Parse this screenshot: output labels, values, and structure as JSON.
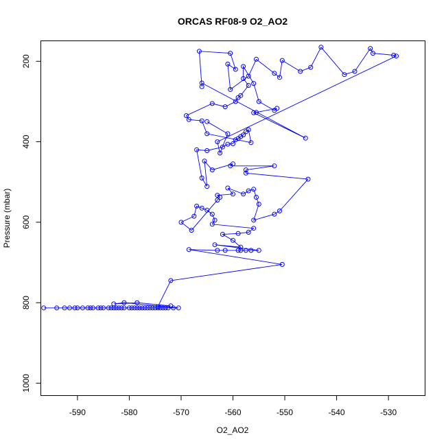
{
  "chart_data": {
    "type": "scatter",
    "title": "ORCAS RF08-9 O2_AO2",
    "xlabel": "O2_AO2",
    "ylabel": "Pressure (mbar)",
    "xlim": [
      -597,
      -523
    ],
    "ylim": [
      1030,
      150
    ],
    "y_reversed": true,
    "x_ticks": [
      -590,
      -580,
      -570,
      -560,
      -550,
      -540,
      -530
    ],
    "x_tick_labels": [
      "-590",
      "-580",
      "-570",
      "-560",
      "-550",
      "-540",
      "-530"
    ],
    "y_ticks": [
      200,
      400,
      600,
      800,
      1000
    ],
    "y_tick_labels": [
      "200",
      "400",
      "600",
      "800",
      "1000"
    ],
    "series_color": "#0000ff",
    "grid": false,
    "legend": "none",
    "points": [
      [
        -596.5,
        813
      ],
      [
        -594,
        813
      ],
      [
        -592.5,
        813
      ],
      [
        -591.5,
        813
      ],
      [
        -590.5,
        813
      ],
      [
        -590,
        813
      ],
      [
        -589,
        813
      ],
      [
        -588,
        813
      ],
      [
        -587.5,
        813
      ],
      [
        -587,
        813
      ],
      [
        -586,
        813
      ],
      [
        -585.5,
        813
      ],
      [
        -585,
        813
      ],
      [
        -584,
        813
      ],
      [
        -583.5,
        813
      ],
      [
        -583,
        813
      ],
      [
        -582.5,
        813
      ],
      [
        -582,
        813
      ],
      [
        -581.5,
        813
      ],
      [
        -581,
        813
      ],
      [
        -580,
        813
      ],
      [
        -579.5,
        813
      ],
      [
        -579,
        813
      ],
      [
        -578.5,
        813
      ],
      [
        -578,
        813
      ],
      [
        -577.5,
        813
      ],
      [
        -577,
        813
      ],
      [
        -576.5,
        813
      ],
      [
        -576,
        813
      ],
      [
        -575.5,
        813
      ],
      [
        -575,
        813
      ],
      [
        -574.5,
        813
      ],
      [
        -574,
        813
      ],
      [
        -573.5,
        813
      ],
      [
        -573,
        813
      ],
      [
        -572.5,
        813
      ],
      [
        -571.5,
        813
      ],
      [
        -570.5,
        813
      ],
      [
        -581,
        800
      ],
      [
        -583,
        803
      ],
      [
        -578.5,
        800
      ],
      [
        -572,
        808
      ],
      [
        -574.5,
        810
      ],
      [
        -572,
        745
      ],
      [
        -550.5,
        705
      ],
      [
        -568.5,
        668
      ],
      [
        -563,
        670
      ],
      [
        -561.5,
        670
      ],
      [
        -559,
        670
      ],
      [
        -558.5,
        670
      ],
      [
        -557.5,
        670
      ],
      [
        -556.5,
        670
      ],
      [
        -555,
        670
      ],
      [
        -563.5,
        656
      ],
      [
        -558.5,
        662
      ],
      [
        -560,
        645
      ],
      [
        -562,
        630
      ],
      [
        -559,
        628
      ],
      [
        -557,
        625
      ],
      [
        -556,
        615
      ],
      [
        -564,
        605
      ],
      [
        -563.5,
        595
      ],
      [
        -564,
        580
      ],
      [
        -565,
        570
      ],
      [
        -566,
        565
      ],
      [
        -567,
        560
      ],
      [
        -567.5,
        585
      ],
      [
        -570,
        600
      ],
      [
        -568,
        620
      ],
      [
        -563,
        545
      ],
      [
        -562.5,
        538
      ],
      [
        -563,
        533
      ],
      [
        -560,
        530
      ],
      [
        -561,
        515
      ],
      [
        -558,
        530
      ],
      [
        -557,
        522
      ],
      [
        -556,
        518
      ],
      [
        -555.5,
        538
      ],
      [
        -555,
        555
      ],
      [
        -556,
        595
      ],
      [
        -552,
        580
      ],
      [
        -551,
        572
      ],
      [
        -545.5,
        493
      ],
      [
        -557.5,
        478
      ],
      [
        -557.5,
        470
      ],
      [
        -552,
        460
      ],
      [
        -560.5,
        460
      ],
      [
        -560,
        455
      ],
      [
        -564,
        470
      ],
      [
        -565.5,
        448
      ],
      [
        -565,
        511
      ],
      [
        -566,
        490
      ],
      [
        -567,
        420
      ],
      [
        -565,
        422
      ],
      [
        -562,
        413
      ],
      [
        -561,
        406
      ],
      [
        -560,
        405
      ],
      [
        -559.5,
        395
      ],
      [
        -559,
        392
      ],
      [
        -558.5,
        387
      ],
      [
        -558,
        383
      ],
      [
        -557.5,
        375
      ],
      [
        -557,
        370
      ],
      [
        -556.5,
        402
      ],
      [
        -565,
        380
      ],
      [
        -566,
        348
      ],
      [
        -568.5,
        345
      ],
      [
        -569,
        335
      ],
      [
        -564,
        305
      ],
      [
        -561.5,
        313
      ],
      [
        -559.5,
        300
      ],
      [
        -559,
        290
      ],
      [
        -558.5,
        285
      ],
      [
        -557,
        260
      ],
      [
        -558,
        243
      ],
      [
        -558,
        213
      ],
      [
        -556,
        255
      ],
      [
        -555,
        300
      ],
      [
        -552,
        322
      ],
      [
        -551.5,
        317
      ],
      [
        -555.5,
        327
      ],
      [
        -556,
        328
      ],
      [
        -546,
        391
      ],
      [
        -566,
        254
      ],
      [
        -566,
        263
      ],
      [
        -566.5,
        175
      ],
      [
        -560.5,
        180
      ],
      [
        -559.5,
        220
      ],
      [
        -561,
        207
      ],
      [
        -560.5,
        270
      ],
      [
        -557,
        237
      ],
      [
        -555.5,
        195
      ],
      [
        -552,
        230
      ],
      [
        -551,
        240
      ],
      [
        -550.5,
        198
      ],
      [
        -547,
        225
      ],
      [
        -545,
        215
      ],
      [
        -543,
        165
      ],
      [
        -538.5,
        233
      ],
      [
        -536.5,
        225
      ],
      [
        -533.5,
        168
      ],
      [
        -533,
        180
      ],
      [
        -529,
        185
      ],
      [
        -528.5,
        187
      ],
      [
        -563,
        400
      ],
      [
        -562.5,
        428
      ],
      [
        -561,
        380
      ],
      [
        -565,
        350
      ]
    ]
  }
}
